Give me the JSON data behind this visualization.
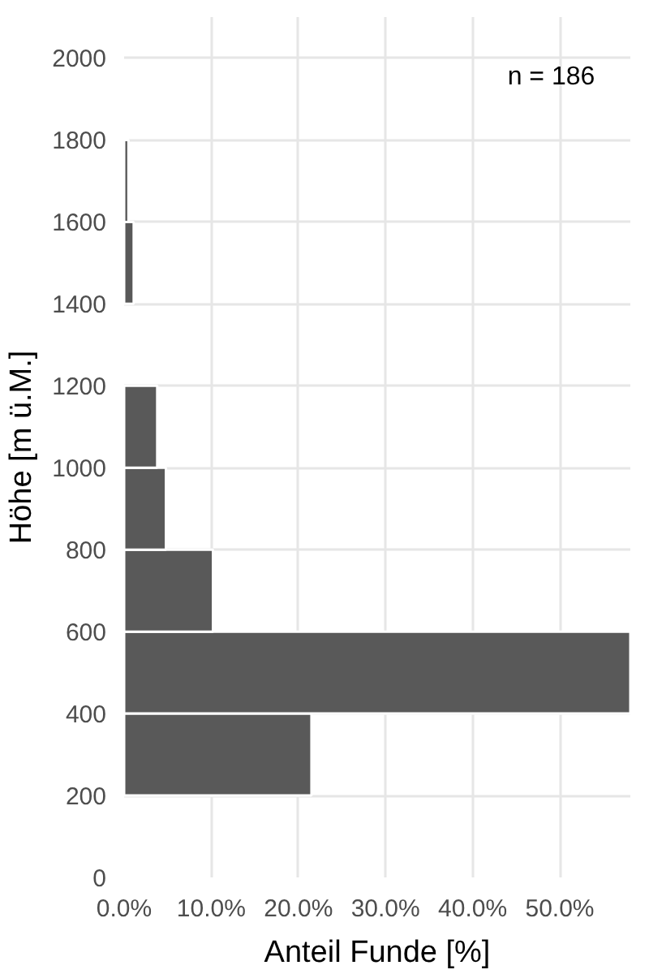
{
  "chart_data": {
    "type": "histogram",
    "orientation": "horizontal",
    "xlabel": "Anteil Funde [%]",
    "ylabel": "Höhe [m ü.M.]",
    "bins": [
      200,
      400,
      600,
      800,
      1000,
      1200,
      1400,
      1600,
      1800
    ],
    "values": [
      21.5,
      58.1,
      10.2,
      4.8,
      3.8,
      0,
      1.1,
      0.5
    ],
    "color": "#595959",
    "xlim": [
      0,
      58.1
    ],
    "xticks": [
      {
        "value": 0,
        "label": "0.0%"
      },
      {
        "value": 10,
        "label": "10.0%"
      },
      {
        "value": 20,
        "label": "20.0%"
      },
      {
        "value": 30,
        "label": "30.0%"
      },
      {
        "value": 40,
        "label": "40.0%"
      },
      {
        "value": 50,
        "label": "50.0%"
      }
    ],
    "ylim": [
      0,
      2100
    ],
    "yticks": [
      0,
      200,
      400,
      600,
      800,
      1000,
      1200,
      1400,
      1600,
      1800,
      2000
    ],
    "grid": true,
    "annotations": [
      "n = 186"
    ]
  }
}
